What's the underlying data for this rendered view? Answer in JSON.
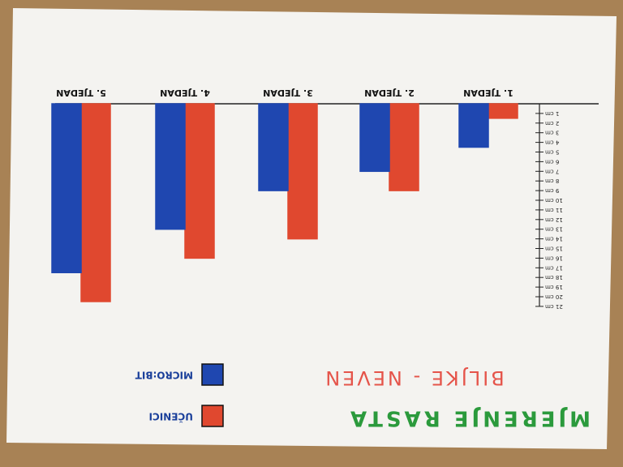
{
  "chart_data": {
    "type": "bar",
    "title": "MJERENJE RASTA",
    "subtitle": "BILJKE - NEVEN",
    "categories": [
      "1. TJEDAN",
      "2. TJEDAN",
      "3. TJEDAN",
      "4. TJEDAN",
      "5. TJEDAN"
    ],
    "series": [
      {
        "name": "UČENICI",
        "color": "#e0482f",
        "values": [
          1.5,
          9,
          14,
          16,
          20.5
        ]
      },
      {
        "name": "MICRO:BIT",
        "color": "#1f47b0",
        "values": [
          4.5,
          7,
          9,
          13,
          17.5
        ]
      }
    ],
    "ylim": [
      0,
      21
    ],
    "yticks": [
      {
        "value": 1,
        "label": "1 cm"
      },
      {
        "value": 2,
        "label": "2 cm"
      },
      {
        "value": 3,
        "label": "3 cm"
      },
      {
        "value": 4,
        "label": "4 cm"
      },
      {
        "value": 5,
        "label": "5 cm"
      },
      {
        "value": 6,
        "label": "6 cm"
      },
      {
        "value": 7,
        "label": "7 cm"
      },
      {
        "value": 8,
        "label": "8 cm"
      },
      {
        "value": 9,
        "label": "9 cm"
      },
      {
        "value": 10,
        "label": "10 cm"
      },
      {
        "value": 11,
        "label": "11 cm"
      },
      {
        "value": 12,
        "label": "12 cm"
      },
      {
        "value": 13,
        "label": "13 cm"
      },
      {
        "value": 14,
        "label": "14 cm"
      },
      {
        "value": 15,
        "label": "15 cm"
      },
      {
        "value": 16,
        "label": "16 cm"
      },
      {
        "value": 17,
        "label": "17 cm"
      },
      {
        "value": 18,
        "label": "18 cm"
      },
      {
        "value": 19,
        "label": "19 cm"
      },
      {
        "value": 20,
        "label": "20 cm"
      },
      {
        "value": 21,
        "label": "21 cm"
      }
    ]
  }
}
